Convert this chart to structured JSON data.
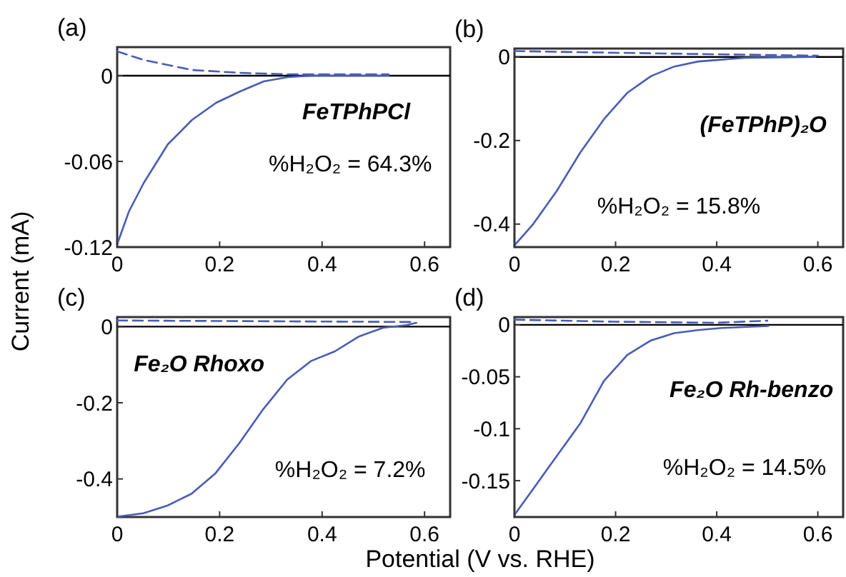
{
  "chart_data": [
    {
      "type": "line",
      "title": "(a)",
      "ylabel": "Current (mA)",
      "xlim": [
        0,
        0.65
      ],
      "xticks": [
        0,
        0.2,
        0.4,
        0.6
      ],
      "ylim": [
        -0.12,
        0.02
      ],
      "yticks": [
        0,
        -0.06,
        -0.12
      ],
      "ref_lines": [
        {
          "axis": "y",
          "value": 0,
          "color": "#000000"
        }
      ],
      "annotations": [
        "FeTPhPCl",
        "%H₂O₂ = 64.3%"
      ],
      "series": [
        {
          "color": "#4a5cb4",
          "line_style": "solid",
          "x": [
            0,
            0.023,
            0.052,
            0.099,
            0.146,
            0.193,
            0.24,
            0.286,
            0.333,
            0.38,
            0.45,
            0.53
          ],
          "values": [
            -0.118,
            -0.095,
            -0.075,
            -0.048,
            -0.031,
            -0.019,
            -0.011,
            -0.004,
            -0.001,
            0,
            0,
            0
          ]
        },
        {
          "color": "#4a5cb4",
          "line_style": "dashed",
          "x": [
            0,
            0.052,
            0.146,
            0.24,
            0.333,
            0.43,
            0.53
          ],
          "values": [
            0.017,
            0.011,
            0.004,
            0.002,
            0.001,
            0.001,
            0.001
          ]
        }
      ]
    },
    {
      "type": "line",
      "title": "(b)",
      "xlim": [
        0,
        0.65
      ],
      "xticks": [
        0,
        0.2,
        0.4,
        0.6
      ],
      "ylim": [
        -0.455,
        0.02
      ],
      "yticks": [
        0,
        -0.2,
        -0.4
      ],
      "ref_lines": [
        {
          "axis": "y",
          "value": 0,
          "color": "#000000"
        }
      ],
      "annotations": [
        "(FeTPhP)₂O",
        "%H₂O₂ = 15.8%"
      ],
      "series": [
        {
          "color": "#4a5cb4",
          "line_style": "solid",
          "x": [
            0,
            0.037,
            0.084,
            0.13,
            0.177,
            0.223,
            0.27,
            0.316,
            0.363,
            0.456,
            0.595
          ],
          "values": [
            -0.451,
            -0.4,
            -0.32,
            -0.229,
            -0.149,
            -0.086,
            -0.046,
            -0.023,
            -0.011,
            -0.002,
            0
          ]
        },
        {
          "color": "#4a5cb4",
          "line_style": "dashed",
          "x": [
            0,
            0.3,
            0.6
          ],
          "values": [
            0.014,
            0.008,
            0.003
          ]
        }
      ]
    },
    {
      "type": "line",
      "title": "(c)",
      "xlabel": "Potential (V vs. RHE)",
      "xlim": [
        0,
        0.65
      ],
      "xticks": [
        0,
        0.2,
        0.4,
        0.6
      ],
      "ylim": [
        -0.5,
        0.025
      ],
      "yticks": [
        0,
        -0.2,
        -0.4
      ],
      "ref_lines": [
        {
          "axis": "y",
          "value": 0,
          "color": "#000000"
        }
      ],
      "annotations": [
        "Fe₂O Rhoxo",
        "%H₂O₂ = 7.2%"
      ],
      "series": [
        {
          "color": "#4a5cb4",
          "line_style": "solid",
          "x": [
            0,
            0.051,
            0.098,
            0.145,
            0.192,
            0.238,
            0.285,
            0.332,
            0.379,
            0.425,
            0.472,
            0.519,
            0.565,
            0.584
          ],
          "values": [
            -0.499,
            -0.49,
            -0.47,
            -0.439,
            -0.385,
            -0.307,
            -0.217,
            -0.139,
            -0.09,
            -0.065,
            -0.026,
            -0.003,
            0.004,
            0.01
          ]
        },
        {
          "color": "#4a5cb4",
          "line_style": "dashed",
          "x": [
            0,
            0.3,
            0.58
          ],
          "values": [
            0.016,
            0.014,
            0.012
          ]
        }
      ]
    },
    {
      "type": "line",
      "title": "(d)",
      "xlim": [
        0,
        0.65
      ],
      "xticks": [
        0,
        0.2,
        0.4,
        0.6
      ],
      "ylim": [
        -0.185,
        0.0075
      ],
      "yticks": [
        0,
        -0.05,
        -0.1,
        -0.15
      ],
      "ref_lines": [
        {
          "axis": "y",
          "value": 0,
          "color": "#000000"
        }
      ],
      "annotations": [
        "Fe₂O Rh-benzo",
        "%H₂O₂ = 14.5%"
      ],
      "series": [
        {
          "color": "#4a5cb4",
          "line_style": "solid",
          "x": [
            0,
            0.037,
            0.084,
            0.13,
            0.177,
            0.223,
            0.27,
            0.316,
            0.363,
            0.41,
            0.502
          ],
          "values": [
            -0.183,
            -0.158,
            -0.126,
            -0.095,
            -0.054,
            -0.029,
            -0.015,
            -0.008,
            -0.005,
            -0.003,
            -0.001
          ]
        },
        {
          "color": "#4a5cb4",
          "line_style": "dashed",
          "x": [
            0,
            0.2,
            0.4,
            0.5
          ],
          "values": [
            0.005,
            0.003,
            0.002,
            0.004
          ]
        }
      ]
    }
  ]
}
